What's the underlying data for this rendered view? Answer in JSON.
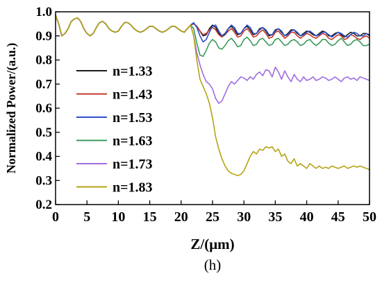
{
  "chart_data": {
    "type": "line",
    "panel_label": "(h)",
    "xlabel": "Z/(μm)",
    "ylabel": "Normalized Power/(a.u.)",
    "xlim": [
      0,
      50
    ],
    "ylim": [
      0.2,
      1.0
    ],
    "xticks": [
      "0",
      "5",
      "10",
      "15",
      "20",
      "25",
      "30",
      "35",
      "40",
      "45",
      "50"
    ],
    "yticks": [
      "0.2",
      "0.3",
      "0.4",
      "0.5",
      "0.6",
      "0.7",
      "0.8",
      "0.9",
      "1.0"
    ],
    "grid": false,
    "legend_position": "left",
    "x": [
      0,
      0.5,
      1,
      1.5,
      2,
      2.5,
      3,
      3.5,
      4,
      4.5,
      5,
      5.5,
      6,
      6.5,
      7,
      7.5,
      8,
      8.5,
      9,
      9.5,
      10,
      10.5,
      11,
      11.5,
      12,
      12.5,
      13,
      13.5,
      14,
      14.5,
      15,
      15.5,
      16,
      16.5,
      17,
      17.5,
      18,
      18.5,
      19,
      19.5,
      20,
      20.5,
      21,
      21.5,
      22,
      22.5,
      23,
      23.5,
      24,
      24.5,
      25,
      25.5,
      26,
      26.5,
      27,
      27.5,
      28,
      28.5,
      29,
      29.5,
      30,
      30.5,
      31,
      31.5,
      32,
      32.5,
      33,
      33.5,
      34,
      34.5,
      35,
      35.5,
      36,
      36.5,
      37,
      37.5,
      38,
      38.5,
      39,
      39.5,
      40,
      40.5,
      41,
      41.5,
      42,
      42.5,
      43,
      43.5,
      44,
      44.5,
      45,
      45.5,
      46,
      46.5,
      47,
      47.5,
      48,
      48.5,
      49,
      49.5,
      50
    ],
    "series": [
      {
        "name": "n=1.33",
        "color": "#1a1a1a",
        "values": [
          0.985,
          0.95,
          0.9,
          0.91,
          0.93,
          0.96,
          0.97,
          0.975,
          0.96,
          0.93,
          0.91,
          0.9,
          0.91,
          0.935,
          0.955,
          0.96,
          0.95,
          0.93,
          0.92,
          0.915,
          0.92,
          0.94,
          0.955,
          0.955,
          0.945,
          0.93,
          0.92,
          0.915,
          0.92,
          0.93,
          0.94,
          0.94,
          0.93,
          0.92,
          0.915,
          0.92,
          0.93,
          0.94,
          0.94,
          0.93,
          0.92,
          0.915,
          0.93,
          0.945,
          0.95,
          0.94,
          0.92,
          0.9,
          0.905,
          0.93,
          0.945,
          0.935,
          0.91,
          0.9,
          0.91,
          0.93,
          0.94,
          0.925,
          0.905,
          0.91,
          0.93,
          0.94,
          0.925,
          0.905,
          0.91,
          0.93,
          0.935,
          0.92,
          0.9,
          0.905,
          0.925,
          0.93,
          0.915,
          0.9,
          0.91,
          0.925,
          0.925,
          0.91,
          0.9,
          0.91,
          0.92,
          0.915,
          0.905,
          0.9,
          0.91,
          0.92,
          0.915,
          0.9,
          0.9,
          0.91,
          0.915,
          0.905,
          0.895,
          0.905,
          0.915,
          0.91,
          0.9,
          0.9,
          0.91,
          0.91,
          0.9
        ]
      },
      {
        "name": "n=1.43",
        "color": "#c0392b",
        "values": [
          0.985,
          0.95,
          0.9,
          0.91,
          0.93,
          0.96,
          0.97,
          0.975,
          0.96,
          0.93,
          0.91,
          0.9,
          0.91,
          0.935,
          0.955,
          0.96,
          0.95,
          0.93,
          0.92,
          0.915,
          0.92,
          0.94,
          0.955,
          0.955,
          0.945,
          0.93,
          0.92,
          0.915,
          0.92,
          0.93,
          0.94,
          0.94,
          0.93,
          0.92,
          0.915,
          0.92,
          0.93,
          0.94,
          0.94,
          0.93,
          0.92,
          0.915,
          0.93,
          0.945,
          0.95,
          0.94,
          0.92,
          0.905,
          0.91,
          0.925,
          0.935,
          0.925,
          0.905,
          0.895,
          0.905,
          0.92,
          0.93,
          0.915,
          0.895,
          0.9,
          0.92,
          0.93,
          0.915,
          0.895,
          0.9,
          0.915,
          0.925,
          0.91,
          0.89,
          0.895,
          0.915,
          0.92,
          0.905,
          0.89,
          0.9,
          0.915,
          0.915,
          0.9,
          0.89,
          0.9,
          0.91,
          0.905,
          0.895,
          0.89,
          0.9,
          0.91,
          0.905,
          0.89,
          0.885,
          0.895,
          0.905,
          0.9,
          0.885,
          0.89,
          0.905,
          0.9,
          0.89,
          0.885,
          0.895,
          0.9,
          0.89
        ]
      },
      {
        "name": "n=1.53",
        "color": "#2e4fc9",
        "values": [
          0.985,
          0.95,
          0.9,
          0.91,
          0.93,
          0.96,
          0.97,
          0.975,
          0.96,
          0.93,
          0.91,
          0.9,
          0.91,
          0.935,
          0.955,
          0.96,
          0.95,
          0.93,
          0.92,
          0.915,
          0.92,
          0.94,
          0.955,
          0.955,
          0.945,
          0.93,
          0.92,
          0.915,
          0.92,
          0.93,
          0.94,
          0.94,
          0.93,
          0.92,
          0.915,
          0.92,
          0.93,
          0.94,
          0.94,
          0.93,
          0.92,
          0.915,
          0.93,
          0.945,
          0.955,
          0.935,
          0.9,
          0.875,
          0.885,
          0.915,
          0.94,
          0.945,
          0.92,
          0.9,
          0.905,
          0.93,
          0.945,
          0.935,
          0.91,
          0.91,
          0.93,
          0.945,
          0.935,
          0.91,
          0.91,
          0.925,
          0.935,
          0.925,
          0.905,
          0.905,
          0.92,
          0.93,
          0.92,
          0.9,
          0.905,
          0.92,
          0.925,
          0.915,
          0.9,
          0.905,
          0.915,
          0.92,
          0.91,
          0.9,
          0.905,
          0.915,
          0.915,
          0.905,
          0.895,
          0.905,
          0.915,
          0.91,
          0.9,
          0.895,
          0.905,
          0.915,
          0.91,
          0.9,
          0.9,
          0.91,
          0.905
        ]
      },
      {
        "name": "n=1.63",
        "color": "#3a9a5b",
        "values": [
          0.985,
          0.95,
          0.9,
          0.91,
          0.93,
          0.96,
          0.97,
          0.975,
          0.96,
          0.93,
          0.91,
          0.9,
          0.91,
          0.935,
          0.955,
          0.96,
          0.95,
          0.93,
          0.92,
          0.915,
          0.92,
          0.94,
          0.955,
          0.955,
          0.945,
          0.93,
          0.92,
          0.915,
          0.92,
          0.93,
          0.94,
          0.94,
          0.93,
          0.92,
          0.915,
          0.92,
          0.93,
          0.94,
          0.94,
          0.93,
          0.92,
          0.915,
          0.93,
          0.945,
          0.93,
          0.87,
          0.82,
          0.815,
          0.84,
          0.87,
          0.885,
          0.875,
          0.85,
          0.845,
          0.86,
          0.88,
          0.89,
          0.875,
          0.855,
          0.86,
          0.885,
          0.895,
          0.88,
          0.86,
          0.865,
          0.885,
          0.89,
          0.875,
          0.86,
          0.865,
          0.885,
          0.89,
          0.875,
          0.86,
          0.865,
          0.88,
          0.885,
          0.875,
          0.86,
          0.865,
          0.88,
          0.885,
          0.87,
          0.86,
          0.87,
          0.885,
          0.885,
          0.87,
          0.86,
          0.865,
          0.88,
          0.89,
          0.875,
          0.86,
          0.865,
          0.88,
          0.885,
          0.875,
          0.86,
          0.86,
          0.865
        ]
      },
      {
        "name": "n=1.73",
        "color": "#a06be0",
        "values": [
          0.985,
          0.95,
          0.9,
          0.91,
          0.93,
          0.96,
          0.97,
          0.975,
          0.96,
          0.93,
          0.91,
          0.9,
          0.91,
          0.935,
          0.955,
          0.96,
          0.95,
          0.93,
          0.92,
          0.915,
          0.92,
          0.94,
          0.955,
          0.955,
          0.945,
          0.93,
          0.92,
          0.915,
          0.92,
          0.93,
          0.94,
          0.94,
          0.93,
          0.92,
          0.915,
          0.92,
          0.93,
          0.94,
          0.94,
          0.93,
          0.92,
          0.915,
          0.93,
          0.945,
          0.9,
          0.83,
          0.78,
          0.74,
          0.71,
          0.7,
          0.68,
          0.64,
          0.62,
          0.63,
          0.66,
          0.69,
          0.71,
          0.7,
          0.715,
          0.73,
          0.725,
          0.715,
          0.73,
          0.72,
          0.74,
          0.75,
          0.735,
          0.76,
          0.755,
          0.73,
          0.77,
          0.75,
          0.72,
          0.755,
          0.73,
          0.71,
          0.74,
          0.72,
          0.71,
          0.73,
          0.715,
          0.72,
          0.73,
          0.715,
          0.72,
          0.73,
          0.725,
          0.715,
          0.72,
          0.73,
          0.72,
          0.71,
          0.725,
          0.73,
          0.72,
          0.725,
          0.715,
          0.73,
          0.725,
          0.72,
          0.715
        ]
      },
      {
        "name": "n=1.83",
        "color": "#b5a312",
        "values": [
          0.985,
          0.95,
          0.9,
          0.91,
          0.93,
          0.96,
          0.97,
          0.975,
          0.96,
          0.93,
          0.91,
          0.9,
          0.91,
          0.935,
          0.955,
          0.96,
          0.95,
          0.93,
          0.92,
          0.915,
          0.92,
          0.94,
          0.955,
          0.955,
          0.945,
          0.93,
          0.92,
          0.915,
          0.92,
          0.93,
          0.94,
          0.94,
          0.93,
          0.92,
          0.915,
          0.92,
          0.93,
          0.94,
          0.94,
          0.93,
          0.92,
          0.915,
          0.93,
          0.945,
          0.9,
          0.8,
          0.72,
          0.69,
          0.66,
          0.62,
          0.56,
          0.48,
          0.43,
          0.39,
          0.36,
          0.34,
          0.33,
          0.325,
          0.32,
          0.325,
          0.34,
          0.37,
          0.4,
          0.42,
          0.41,
          0.43,
          0.425,
          0.44,
          0.435,
          0.44,
          0.42,
          0.43,
          0.4,
          0.41,
          0.38,
          0.37,
          0.39,
          0.36,
          0.37,
          0.36,
          0.35,
          0.37,
          0.36,
          0.35,
          0.36,
          0.35,
          0.355,
          0.35,
          0.36,
          0.355,
          0.35,
          0.355,
          0.36,
          0.35,
          0.355,
          0.36,
          0.355,
          0.36,
          0.355,
          0.35,
          0.345
        ]
      }
    ]
  }
}
